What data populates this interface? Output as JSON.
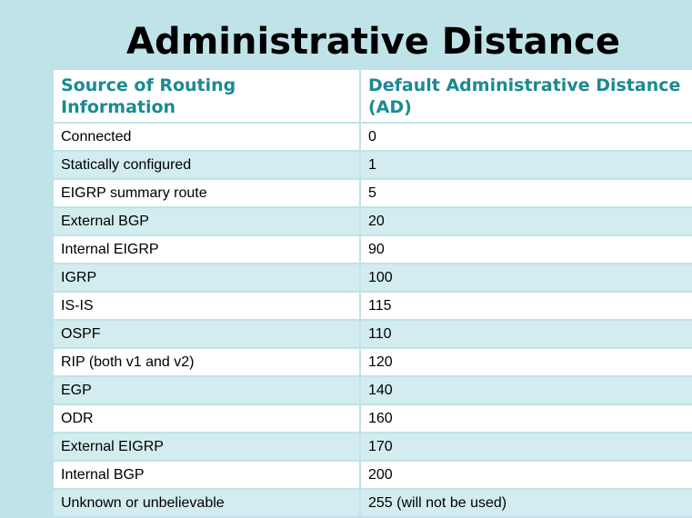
{
  "title": "Administrative Distance",
  "table": {
    "headers": [
      "Source of Routing Information",
      "Default Administrative Distance (AD)"
    ],
    "rows": [
      [
        "Connected",
        "0"
      ],
      [
        "Statically configured",
        "1"
      ],
      [
        "EIGRP summary route",
        "5"
      ],
      [
        "External BGP",
        "20"
      ],
      [
        "Internal EIGRP",
        "90"
      ],
      [
        "IGRP",
        "100"
      ],
      [
        "IS-IS",
        "115"
      ],
      [
        "OSPF",
        "110"
      ],
      [
        "RIP (both v1 and v2)",
        "120"
      ],
      [
        "EGP",
        "140"
      ],
      [
        "ODR",
        "160"
      ],
      [
        "External EIGRP",
        "170"
      ],
      [
        "Internal BGP",
        "200"
      ],
      [
        "Unknown or unbelievable",
        "255 (will not be used)"
      ]
    ]
  },
  "colors": {
    "background": "#bfe3e8",
    "header_text": "#1a8a92",
    "row_alt": "#d2ecef",
    "row": "#ffffff"
  }
}
